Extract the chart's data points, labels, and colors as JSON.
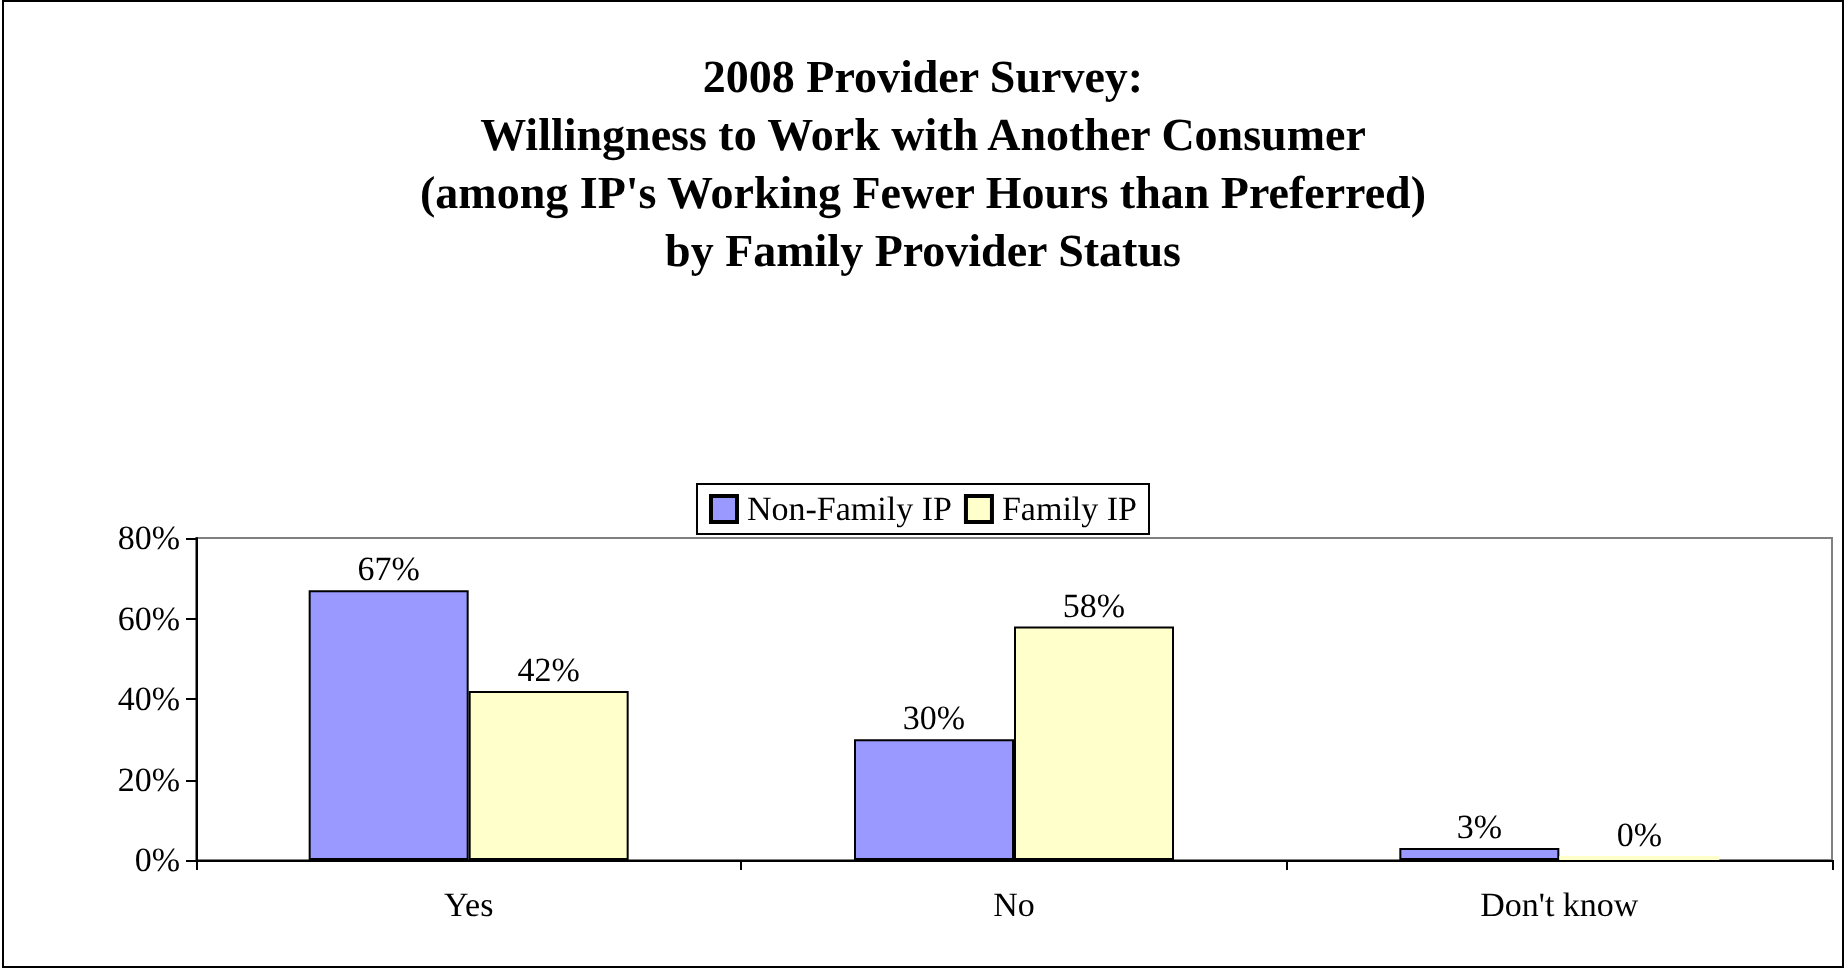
{
  "chart_data": {
    "type": "bar",
    "title": "2008 Provider Survey:\nWillingness to Work with Another Consumer\n(among IP's Working Fewer Hours than Preferred)\nby Family Provider Status",
    "categories": [
      "Yes",
      "No",
      "Don't know"
    ],
    "series": [
      {
        "name": "Non-Family IP",
        "color": "#9999ff",
        "values": [
          67,
          30,
          3
        ],
        "value_labels": [
          "67%",
          "30%",
          "3%"
        ]
      },
      {
        "name": "Family IP",
        "color": "#ffffcc",
        "values": [
          42,
          58,
          0
        ],
        "value_labels": [
          "42%",
          "58%",
          "0%"
        ]
      }
    ],
    "ylim": [
      0,
      80
    ],
    "yticks": [
      {
        "value": 0,
        "label": "0%"
      },
      {
        "value": 20,
        "label": "20%"
      },
      {
        "value": 40,
        "label": "40%"
      },
      {
        "value": 60,
        "label": "60%"
      },
      {
        "value": 80,
        "label": "80%"
      }
    ],
    "grid": false,
    "legend": "top"
  }
}
